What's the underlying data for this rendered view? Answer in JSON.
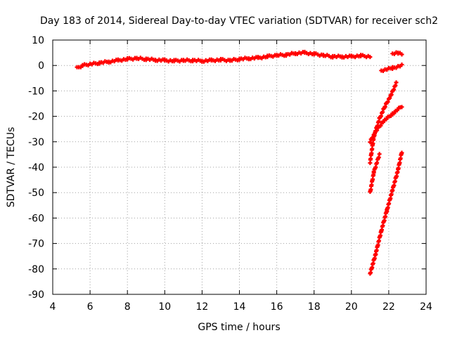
{
  "chart_data": {
    "type": "scatter",
    "title": "Day 183 of 2014, Sidereal Day-to-day VTEC variation (SDTVAR) for receiver sch2",
    "xlabel": "GPS time / hours",
    "ylabel": "SDTVAR / TECUs",
    "xlim": [
      4,
      24
    ],
    "ylim": [
      -90,
      10
    ],
    "xticks": [
      4,
      6,
      8,
      10,
      12,
      14,
      16,
      18,
      20,
      22,
      24
    ],
    "yticks": [
      -90,
      -80,
      -70,
      -60,
      -50,
      -40,
      -30,
      -20,
      -10,
      0,
      10
    ],
    "grid": true,
    "legend": "none",
    "series_color": "#ff0000",
    "series": [
      {
        "x": [
          5.3,
          5.6,
          6.0,
          6.5,
          7.0,
          7.5,
          8.0,
          8.5,
          9.0,
          9.5,
          10.0,
          10.5,
          11.0,
          11.5,
          12.0,
          12.5,
          13.0,
          13.5,
          14.0,
          14.5,
          15.0,
          15.5,
          16.0,
          16.5,
          17.0,
          17.5,
          18.0,
          18.5,
          19.0,
          19.5,
          20.0,
          20.5,
          21.0
        ],
        "y": [
          -1.0,
          0.0,
          0.5,
          1.0,
          1.5,
          2.0,
          2.5,
          2.8,
          2.5,
          2.2,
          2.0,
          1.8,
          2.0,
          2.0,
          1.8,
          2.0,
          2.2,
          2.0,
          2.5,
          2.8,
          3.0,
          3.5,
          4.0,
          4.2,
          4.8,
          5.0,
          4.5,
          4.0,
          3.5,
          3.5,
          3.5,
          3.8,
          3.5
        ]
      },
      {
        "x": [
          22.2,
          22.5,
          22.7
        ],
        "y": [
          4.5,
          5.0,
          4.5
        ]
      },
      {
        "x": [
          21.6,
          22.2,
          22.7
        ],
        "y": [
          -2.0,
          -1.0,
          0.0
        ]
      },
      {
        "x": [
          21.0,
          21.3,
          21.7,
          22.2,
          22.7
        ],
        "y": [
          -30.0,
          -26.0,
          -22.0,
          -19.0,
          -16.0
        ]
      },
      {
        "x": [
          21.0,
          21.2,
          21.5,
          21.8,
          22.1,
          22.4
        ],
        "y": [
          -38.0,
          -28.0,
          -21.0,
          -16.0,
          -12.0,
          -7.0
        ]
      },
      {
        "x": [
          21.0,
          21.2,
          21.5
        ],
        "y": [
          -50.0,
          -42.0,
          -35.0
        ]
      },
      {
        "x": [
          21.0,
          21.3,
          21.6,
          21.9,
          22.2,
          22.5,
          22.7
        ],
        "y": [
          -82.0,
          -74.0,
          -65.0,
          -57.0,
          -49.0,
          -41.0,
          -34.0
        ]
      }
    ]
  }
}
